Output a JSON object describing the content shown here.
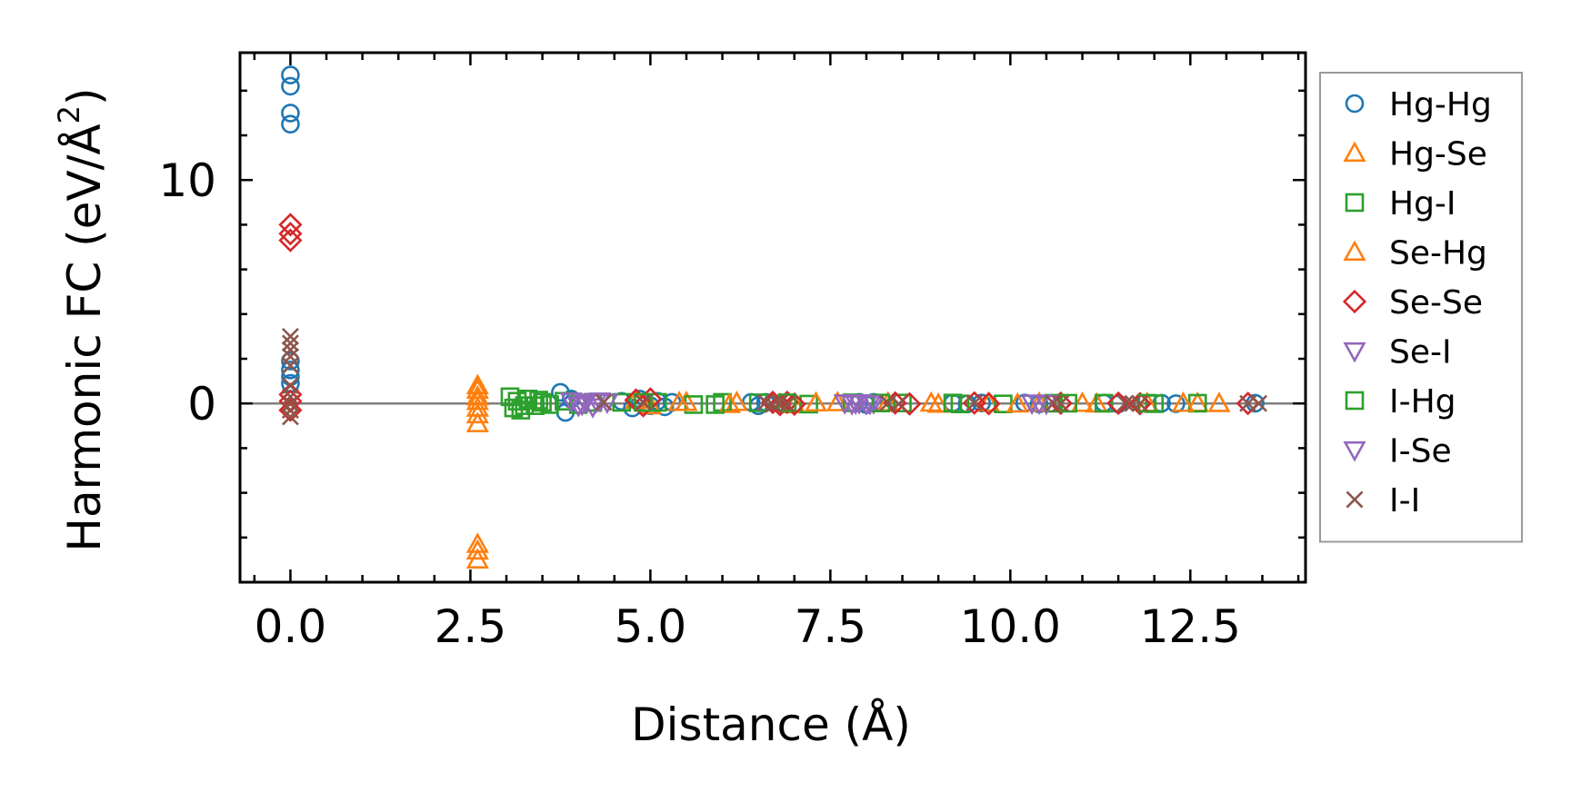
{
  "chart_data": {
    "type": "scatter",
    "title": "",
    "xlabel": "Distance (Å)",
    "ylabel_main": "Harmonic FC (eV/Å",
    "ylabel_sup": "2",
    "ylabel_end": ")",
    "xlim": [
      -0.7,
      14.1
    ],
    "ylim": [
      -8.0,
      15.7
    ],
    "xticks": [
      0.0,
      2.5,
      5.0,
      7.5,
      10.0,
      12.5
    ],
    "xtick_labels": [
      "0.0",
      "2.5",
      "5.0",
      "7.5",
      "10.0",
      "12.5"
    ],
    "yticks": [
      0,
      10
    ],
    "ytick_labels": [
      "0",
      "10"
    ],
    "xminor_step": 0.5,
    "yminor_step": 2,
    "zero_line": true,
    "legend_position": "outside-right",
    "series": [
      {
        "name": "Hg-Hg",
        "marker": "circle",
        "color": "#1f77b4",
        "x": [
          0,
          0,
          0,
          0,
          0,
          0,
          0,
          0,
          3.75,
          3.82,
          3.9,
          4.6,
          4.75,
          4.85,
          5.0,
          5.1,
          5.2,
          5.3,
          6.4,
          6.5,
          6.6,
          7.9,
          8.0,
          8.1,
          9.2,
          9.4,
          9.6,
          10.2,
          10.4,
          11.3,
          11.5,
          12.1,
          12.3,
          13.4
        ],
        "y": [
          14.7,
          14.2,
          13.0,
          12.5,
          1.9,
          1.5,
          1.2,
          0.9,
          0.5,
          -0.4,
          0.2,
          0.1,
          -0.2,
          0.2,
          -0.1,
          0.1,
          -0.15,
          0.05,
          0.05,
          -0.1,
          0.05,
          0.05,
          -0.05,
          0.05,
          0.02,
          -0.02,
          0.02,
          0.02,
          -0.02,
          0.02,
          -0.02,
          0.01,
          -0.01,
          0.01
        ]
      },
      {
        "name": "Hg-Se",
        "marker": "triangle-up",
        "color": "#ff7f0e",
        "x": [
          2.6,
          2.6,
          2.6,
          2.6,
          2.6,
          2.6,
          2.6,
          2.6,
          2.6,
          2.6,
          4.8,
          5.0,
          5.5,
          6.2,
          7.0,
          7.6,
          8.3,
          9.0,
          9.7,
          10.4,
          11.2,
          11.9,
          12.6,
          12.9
        ],
        "y": [
          0.8,
          0.6,
          0.3,
          0.1,
          -0.2,
          -0.5,
          -0.9,
          -6.3,
          -6.6,
          -7.0,
          0.15,
          -0.1,
          0.05,
          0.05,
          -0.05,
          0.04,
          0.03,
          -0.03,
          0.02,
          0.02,
          -0.02,
          0.01,
          0.01,
          0.0
        ]
      },
      {
        "name": "Hg-I",
        "marker": "square",
        "color": "#2ca02c",
        "x": [
          3.05,
          3.1,
          3.15,
          3.2,
          3.3,
          3.4,
          3.5,
          3.6,
          3.8,
          4.0,
          4.2,
          4.6,
          5.1,
          5.6,
          6.0,
          6.5,
          7.2,
          7.8,
          8.5,
          9.2,
          9.9,
          10.6,
          11.3,
          12.0,
          12.6
        ],
        "y": [
          0.3,
          -0.2,
          0.1,
          -0.3,
          0.2,
          -0.1,
          0.05,
          -0.05,
          0.1,
          -0.05,
          0.05,
          0.05,
          0.05,
          -0.05,
          0.05,
          0.03,
          -0.03,
          0.03,
          0.02,
          0.02,
          -0.02,
          0.01,
          0.01,
          -0.01,
          0.01
        ]
      },
      {
        "name": "Se-Hg",
        "marker": "triangle-up",
        "color": "#ff7f0e",
        "x": [
          5.4,
          6.1,
          7.3,
          8.9,
          10.1,
          11.0,
          12.4
        ],
        "y": [
          0.05,
          -0.04,
          0.03,
          0.02,
          -0.02,
          0.01,
          0.01
        ]
      },
      {
        "name": "Se-Se",
        "marker": "diamond",
        "color": "#d62728",
        "x": [
          0,
          0,
          0,
          0,
          0,
          0,
          4.8,
          4.9,
          5.0,
          6.7,
          6.8,
          6.9,
          7.0,
          8.4,
          8.6,
          9.5,
          9.7,
          10.7,
          11.5,
          11.8,
          13.3
        ],
        "y": [
          8.0,
          7.6,
          7.3,
          0.4,
          0.1,
          -0.3,
          0.15,
          -0.1,
          0.2,
          0.05,
          -0.05,
          0.05,
          -0.03,
          0.02,
          -0.02,
          0.02,
          -0.01,
          0.01,
          0.01,
          -0.01,
          0.0
        ]
      },
      {
        "name": "Se-I",
        "marker": "triangle-down",
        "color": "#9467bd",
        "x": [
          3.9,
          4.0,
          4.1,
          4.2,
          4.3,
          4.4,
          7.7,
          7.8,
          7.9,
          8.0,
          8.1,
          10.3,
          10.5
        ],
        "y": [
          0.1,
          -0.1,
          0.05,
          -0.15,
          0.1,
          0.05,
          0.02,
          -0.02,
          0.02,
          -0.02,
          0.02,
          0.01,
          -0.01
        ]
      },
      {
        "name": "I-Hg",
        "marker": "square",
        "color": "#2ca02c",
        "x": [
          3.25,
          3.45,
          4.9,
          5.9,
          6.9,
          8.2,
          9.3,
          10.8,
          11.9
        ],
        "y": [
          -0.1,
          0.15,
          0.05,
          -0.05,
          0.03,
          0.02,
          -0.02,
          0.01,
          0.01
        ]
      },
      {
        "name": "I-Se",
        "marker": "triangle-down",
        "color": "#9467bd",
        "x": [
          4.05,
          4.25,
          7.85,
          8.05,
          10.4
        ],
        "y": [
          -0.05,
          0.08,
          0.01,
          -0.01,
          0.01
        ]
      },
      {
        "name": "I-I",
        "marker": "x",
        "color": "#8c564b",
        "x": [
          0,
          0,
          0,
          0,
          0,
          0,
          0,
          0,
          0,
          0,
          4.35,
          4.9,
          6.6,
          6.7,
          6.8,
          6.9,
          8.3,
          8.45,
          9.5,
          10.6,
          10.7,
          11.6,
          11.7,
          11.8,
          13.3,
          13.45
        ],
        "y": [
          3.0,
          2.7,
          2.4,
          2.1,
          1.7,
          0.8,
          0.3,
          0.0,
          -0.3,
          -0.6,
          0.05,
          0.05,
          0.05,
          -0.05,
          0.04,
          -0.03,
          0.02,
          -0.02,
          0.02,
          0.01,
          -0.01,
          0.01,
          0.0,
          -0.01,
          0.0,
          0.0
        ]
      }
    ]
  }
}
